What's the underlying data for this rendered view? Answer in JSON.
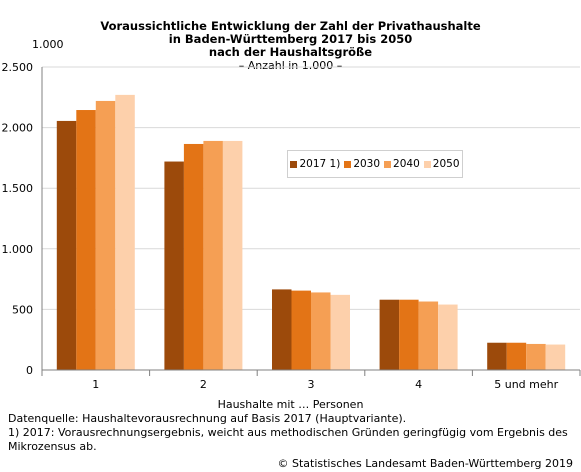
{
  "chart_data": {
    "type": "bar",
    "title_lines": [
      "Voraussichtliche Entwicklung der Zahl der Privathaushalte",
      "in Baden-Württemberg 2017 bis 2050",
      "nach der Haushaltsgröße"
    ],
    "subtitle": "– Anzahl in 1.000 –",
    "unit_label": "1.000",
    "xlabel": "Haushalte mit … Personen",
    "categories": [
      "1",
      "2",
      "3",
      "4",
      "5 und mehr"
    ],
    "series": [
      {
        "name": "2017 1)",
        "color": "#9c4a0b",
        "values": [
          2055,
          1720,
          665,
          580,
          225
        ]
      },
      {
        "name": "2030",
        "color": "#e37416",
        "values": [
          2145,
          1865,
          655,
          580,
          225
        ]
      },
      {
        "name": "2040",
        "color": "#f59f54",
        "values": [
          2220,
          1890,
          640,
          565,
          215
        ]
      },
      {
        "name": "2050",
        "color": "#fdd0ab",
        "values": [
          2270,
          1890,
          620,
          540,
          210
        ]
      }
    ],
    "ylim": [
      0,
      2500
    ],
    "yticks": [
      0,
      500,
      1000,
      1500,
      2000,
      2500
    ],
    "ytick_labels": [
      "0",
      "500",
      "1.000",
      "1.500",
      "2.000",
      "2.500"
    ],
    "grid": true,
    "legend_position": "center-right"
  },
  "footnotes": {
    "source": "Datenquelle: Haushaltevorausrechnung auf Basis 2017 (Hauptvariante).",
    "note": "1) 2017: Vorausrechnungsergebnis, weicht aus methodischen Gründen geringfügig vom Ergebnis des Mikrozensus ab.",
    "copyright": "© Statistisches Landesamt Baden-Württemberg 2019"
  }
}
